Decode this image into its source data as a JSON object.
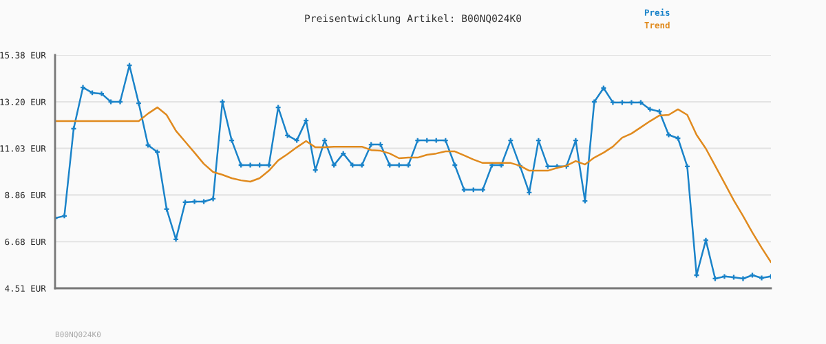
{
  "chart_data": {
    "type": "line",
    "title": "Preisentwicklung Artikel: B00NQ024K0",
    "categories": [
      null,
      null,
      null,
      null,
      null,
      null,
      null,
      null,
      null,
      null,
      null,
      null,
      null,
      null,
      null,
      null,
      null,
      null,
      null,
      null,
      null,
      null,
      null,
      null,
      null,
      null,
      null,
      null,
      null,
      null,
      null,
      null,
      null,
      null,
      null,
      null,
      null,
      null,
      null,
      null,
      null,
      null,
      null,
      null,
      null,
      null,
      null,
      null,
      null,
      null,
      null,
      null,
      null,
      null,
      null,
      null,
      null,
      null,
      null,
      null,
      null,
      null,
      null,
      null,
      null,
      null,
      null,
      null,
      null,
      null,
      null,
      null,
      null,
      null,
      null,
      null,
      null,
      null
    ],
    "series": [
      {
        "name": "Preis",
        "color": "#1a83c9",
        "marker": "cross",
        "values": [
          7.78,
          7.88,
          11.95,
          13.87,
          13.62,
          13.58,
          13.2,
          13.2,
          14.9,
          13.13,
          11.18,
          10.86,
          8.2,
          6.79,
          8.52,
          8.55,
          8.55,
          8.68,
          13.2,
          11.4,
          10.25,
          10.25,
          10.25,
          10.25,
          12.94,
          11.63,
          11.4,
          12.33,
          10.02,
          11.4,
          10.25,
          10.79,
          10.25,
          10.25,
          11.21,
          11.21,
          10.25,
          10.25,
          10.25,
          11.4,
          11.4,
          11.4,
          11.4,
          10.25,
          9.1,
          9.1,
          9.1,
          10.25,
          10.25,
          11.4,
          10.22,
          8.97,
          11.4,
          10.19,
          10.19,
          10.19,
          11.4,
          8.58,
          13.2,
          13.84,
          13.17,
          13.17,
          13.17,
          13.17,
          12.85,
          12.75,
          11.66,
          11.5,
          10.19,
          5.12,
          6.75,
          4.96,
          5.06,
          5.02,
          4.96,
          5.12,
          4.99,
          5.06
        ]
      },
      {
        "name": "Trend",
        "color": "#e08a1e",
        "marker": "none",
        "values": [
          12.3,
          12.3,
          12.3,
          12.3,
          12.3,
          12.3,
          12.3,
          12.3,
          12.3,
          12.3,
          12.65,
          12.94,
          12.59,
          11.85,
          11.34,
          10.83,
          10.31,
          9.93,
          9.8,
          9.64,
          9.54,
          9.48,
          9.64,
          9.99,
          10.47,
          10.76,
          11.08,
          11.37,
          11.08,
          11.08,
          11.11,
          11.11,
          11.11,
          11.11,
          10.95,
          10.92,
          10.79,
          10.57,
          10.6,
          10.6,
          10.73,
          10.79,
          10.89,
          10.89,
          10.7,
          10.51,
          10.35,
          10.35,
          10.35,
          10.35,
          10.22,
          9.99,
          9.99,
          9.99,
          10.12,
          10.22,
          10.44,
          10.28,
          10.6,
          10.83,
          11.11,
          11.53,
          11.72,
          12.01,
          12.3,
          12.56,
          12.59,
          12.85,
          12.59,
          11.66,
          11.02,
          10.22,
          9.42,
          8.61,
          7.88,
          7.11,
          6.4,
          5.73
        ]
      }
    ],
    "ylim": [
      4.51,
      15.38
    ],
    "yticks": [
      {
        "value": 4.51,
        "label": "4.51 EUR"
      },
      {
        "value": 6.68,
        "label": "6.68 EUR"
      },
      {
        "value": 8.86,
        "label": "8.86 EUR"
      },
      {
        "value": 11.03,
        "label": "11.03 EUR"
      },
      {
        "value": 13.2,
        "label": "13.20 EUR"
      },
      {
        "value": 15.38,
        "label": "15.38 EUR"
      }
    ],
    "grid": "y",
    "legend": "top right",
    "annotations": [
      "B00NQ024K0"
    ]
  }
}
